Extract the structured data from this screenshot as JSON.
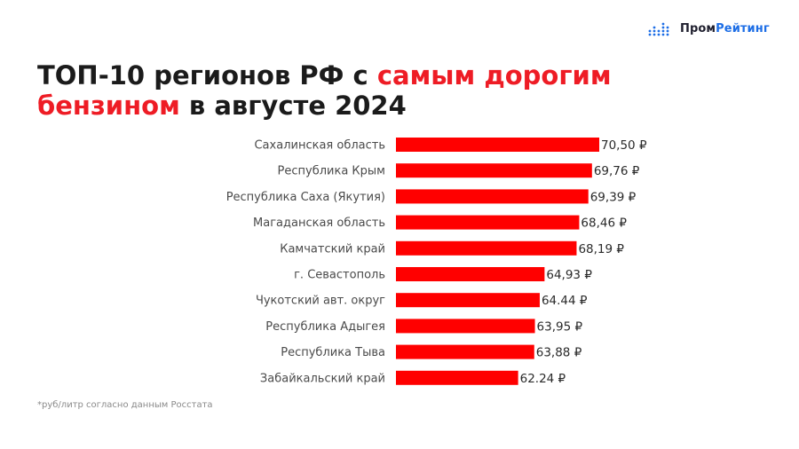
{
  "brand": {
    "part1": "Пром",
    "part2": "Рейтинг",
    "icon": "bar-dots-logo-icon"
  },
  "title": {
    "prefix": "ТОП-10 регионов РФ с ",
    "highlight": "самым дорогим бензином",
    "suffix": " в августе 2024"
  },
  "colors": {
    "bar": "#ff0000",
    "highlight": "#ee1c25",
    "brand_blue": "#1d6ee6"
  },
  "chart_data": {
    "type": "bar",
    "orientation": "horizontal",
    "categories": [
      "Сахалинская область",
      "Республика Крым",
      "Республика Саха (Якутия)",
      "Магаданская область",
      "Камчатский край",
      "г. Севастополь",
      "Чукотский авт. округ",
      "Республика Адыгея",
      "Республика Тыва",
      "Забайкальский край"
    ],
    "values": [
      70.5,
      69.76,
      69.39,
      68.46,
      68.19,
      64.93,
      64.44,
      63.95,
      63.88,
      62.24
    ],
    "value_labels": [
      "70,50 ₽",
      "69,76 ₽",
      "69,39 ₽",
      "68,46 ₽",
      "68,19 ₽",
      "64,93 ₽",
      "64.44 ₽",
      "63,95 ₽",
      "63,88 ₽",
      "62.24 ₽"
    ],
    "grid": false,
    "legend": "none"
  },
  "footnote": "*руб/литр согласно данным Росстата"
}
